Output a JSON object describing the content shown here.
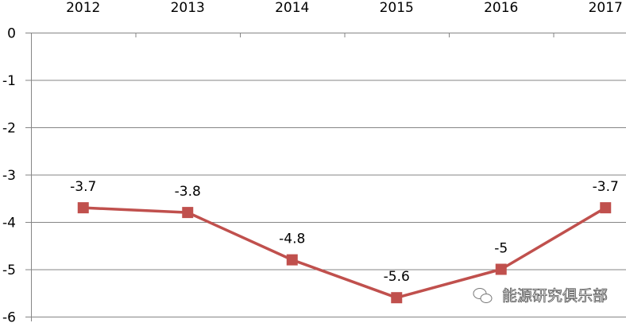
{
  "chart_data": {
    "type": "line",
    "title": "",
    "xlabel": "",
    "ylabel": "",
    "categories": [
      "2012",
      "2013",
      "2014",
      "2015",
      "2016",
      "2017"
    ],
    "series": [
      {
        "values": [
          -3.7,
          -3.8,
          -4.8,
          -5.6,
          -5,
          -3.7
        ],
        "color": "#C0504D",
        "marker": "square"
      }
    ],
    "data_labels": [
      "-3.7",
      "-3.8",
      "-4.8",
      "-5.6",
      "-5",
      "-3.7"
    ],
    "ylim": [
      -6,
      0
    ],
    "yticks": [
      "0",
      "-1",
      "-2",
      "-3",
      "-4",
      "-5",
      "-6"
    ],
    "x_axis_position": "top",
    "grid": {
      "horizontal": true,
      "vertical": false
    },
    "legend": "none"
  },
  "watermark": {
    "text": "能源研究俱乐部",
    "icon": "wechat-icon"
  }
}
